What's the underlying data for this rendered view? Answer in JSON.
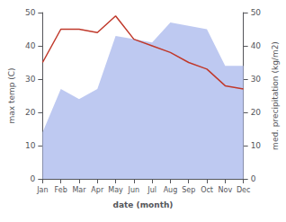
{
  "chart_data": {
    "type": "line",
    "categories": [
      "Jan",
      "Feb",
      "Mar",
      "Apr",
      "May",
      "Jun",
      "Jul",
      "Aug",
      "Sep",
      "Oct",
      "Nov",
      "Dec"
    ],
    "xlabel": "date (month)",
    "ylabel": "max temp (C)",
    "y2label": "med. precipitation (kg/m2)",
    "series": [
      {
        "type": "area",
        "axis": "y2",
        "color": "#b3bfee",
        "values": [
          14,
          27,
          24,
          27,
          43,
          42,
          41,
          47,
          46,
          45,
          34,
          34
        ]
      },
      {
        "type": "line",
        "color": "#c0392b",
        "values": [
          35,
          45,
          45,
          44,
          49,
          42,
          40,
          38,
          35,
          33,
          28,
          27
        ]
      }
    ],
    "ylim": [
      0,
      50
    ],
    "yticks": [
      0,
      10,
      20,
      30,
      40,
      50
    ],
    "y2lim": [
      0,
      50
    ],
    "y2ticks": [
      0,
      10,
      20,
      30,
      40,
      50
    ],
    "grid": false
  }
}
